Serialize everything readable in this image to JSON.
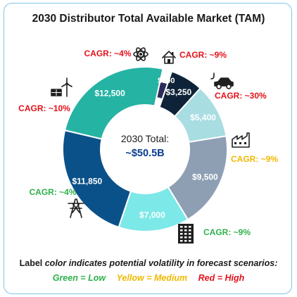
{
  "colors": {
    "green": "#2eb24b",
    "yellow": "#f0b800",
    "red": "#e3121b",
    "icon": "#1f1f1f"
  },
  "chart_data": {
    "type": "pie",
    "title": "2030 Distributor Total Available Market (TAM)",
    "center_label": "2030 Total:",
    "center_value": "~$50.5B",
    "slices": [
      {
        "label": "$3,250",
        "value": 3250,
        "color": "#0f2338",
        "cagr": "CAGR: ~9%",
        "volatility": "high",
        "icon": "house-icon"
      },
      {
        "label": "$5,400",
        "value": 5400,
        "color": "#a8dde2",
        "cagr": "CAGR: ~30%",
        "volatility": "high",
        "icon": "electric-car-icon"
      },
      {
        "label": "$9,500",
        "value": 9500,
        "color": "#8e9fb4",
        "cagr": "CAGR: ~9%",
        "volatility": "medium",
        "icon": "factory-icon"
      },
      {
        "label": "$7,000",
        "value": 7000,
        "color": "#7de8e8",
        "cagr": "CAGR: ~9%",
        "volatility": "low",
        "icon": "office-building-icon"
      },
      {
        "label": "$11,850",
        "value": 11850,
        "color": "#0b5189",
        "cagr": "CAGR: ~4%",
        "volatility": "low",
        "icon": "transmission-tower-icon"
      },
      {
        "label": "$12,500",
        "value": 12500,
        "color": "#25b3a3",
        "cagr": "CAGR: ~10%",
        "volatility": "high",
        "icon": "solar-wind-icon"
      },
      {
        "label": "$900",
        "value": 900,
        "color": "#2d2b5c",
        "cagr": "CAGR: ~4%",
        "volatility": "high",
        "icon": "atom-icon"
      }
    ],
    "footer": {
      "note_prefix": "Label ",
      "note_italic": "color indicates potential volatility in forecast scenarios:",
      "legend": [
        {
          "text": "Green = Low",
          "level": "green"
        },
        {
          "text": "Yellow = Medium",
          "level": "yellow"
        },
        {
          "text": "Red = High",
          "level": "red"
        }
      ]
    }
  }
}
